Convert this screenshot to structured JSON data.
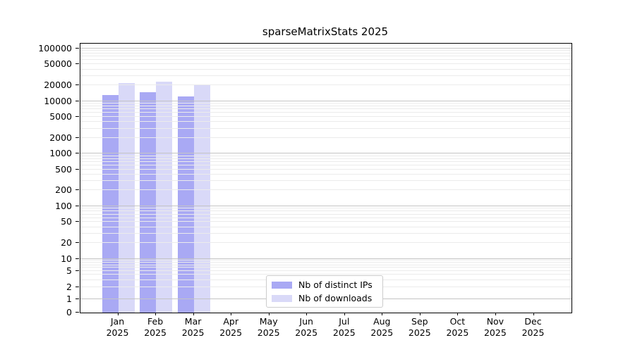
{
  "chart_data": {
    "type": "bar",
    "title": "sparseMatrixStats 2025",
    "categories": [
      "Jan",
      "Feb",
      "Mar",
      "Apr",
      "May",
      "Jun",
      "Jul",
      "Aug",
      "Sep",
      "Oct",
      "Nov",
      "Dec"
    ],
    "category_year": "2025",
    "series": [
      {
        "name": "Nb of distinct IPs",
        "color": "#a9a9f4",
        "values": [
          13000,
          14700,
          12400,
          null,
          null,
          null,
          null,
          null,
          null,
          null,
          null,
          null
        ]
      },
      {
        "name": "Nb of downloads",
        "color": "#d9d9f8",
        "values": [
          21700,
          23300,
          19800,
          null,
          null,
          null,
          null,
          null,
          null,
          null,
          null,
          null
        ]
      }
    ],
    "y_axis": {
      "scale": "log",
      "ticks": [
        0,
        1,
        2,
        5,
        10,
        20,
        50,
        100,
        200,
        500,
        1000,
        2000,
        5000,
        10000,
        20000,
        50000,
        100000
      ],
      "ylim": [
        0,
        100000
      ]
    },
    "x_axis": {
      "tick_label_line1": [
        "Jan",
        "Feb",
        "Mar",
        "Apr",
        "May",
        "Jun",
        "Jul",
        "Aug",
        "Sep",
        "Oct",
        "Nov",
        "Dec"
      ],
      "tick_label_line2": "2025"
    },
    "grid": "horizontal log major+minor",
    "legend_position": "bottom-center-inside"
  },
  "colors": {
    "background": "#ffffff",
    "axis": "#000000",
    "major_gridline": "#c4c4c4",
    "minor_gridline": "#ebebeb",
    "legend_border": "#cccccc",
    "bar_distinct_ips": "#a9a9f4",
    "bar_downloads": "#d9d9f8"
  }
}
